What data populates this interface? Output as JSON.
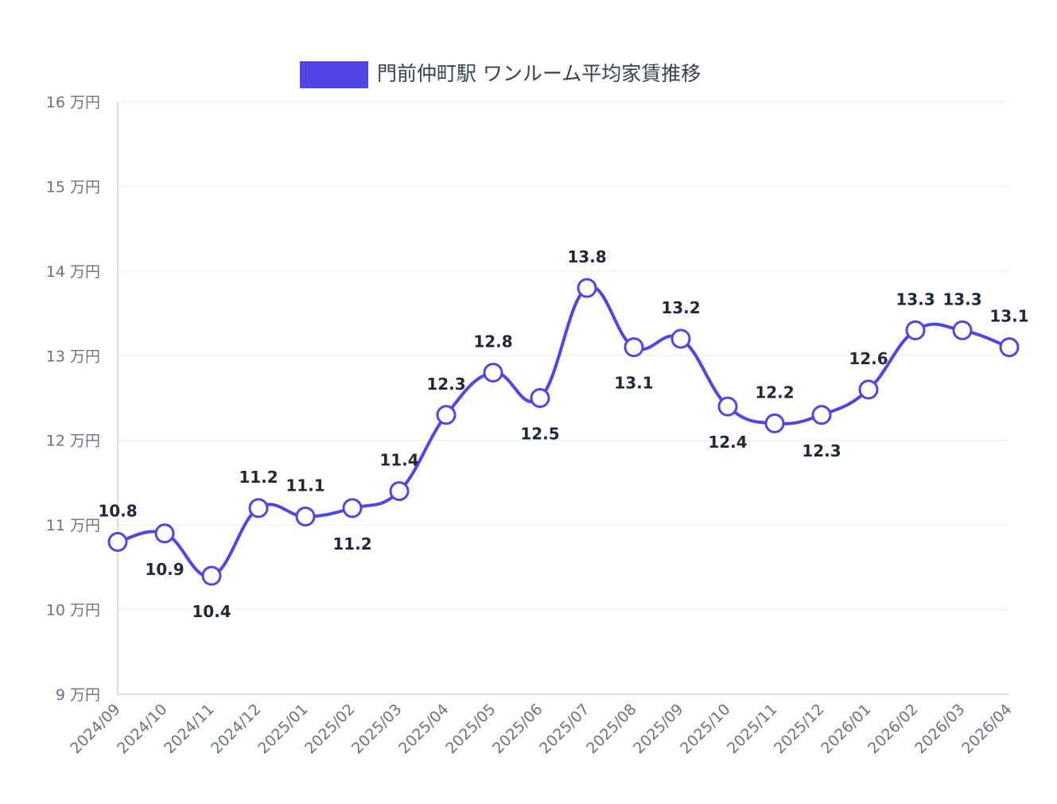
{
  "chart_data": {
    "type": "line",
    "title": "",
    "legend": {
      "position": "top",
      "label": "門前仲町駅 ワンルーム平均家賃推移",
      "color": "#4f46e5"
    },
    "xlabel": "",
    "ylabel": "",
    "y_unit": "万円",
    "ylim": [
      9,
      16
    ],
    "yticks": [
      9,
      10,
      11,
      12,
      13,
      14,
      15,
      16
    ],
    "grid": true,
    "categories": [
      "2024/09",
      "2024/10",
      "2024/11",
      "2024/12",
      "2025/01",
      "2025/02",
      "2025/03",
      "2025/04",
      "2025/05",
      "2025/06",
      "2025/07",
      "2025/08",
      "2025/09",
      "2025/10",
      "2025/11",
      "2025/12",
      "2026/01",
      "2026/02",
      "2026/03",
      "2026/04"
    ],
    "series": [
      {
        "name": "門前仲町駅 ワンルーム平均家賃推移",
        "color": "#4f46e5",
        "values": [
          10.8,
          10.9,
          10.4,
          11.2,
          11.1,
          11.2,
          11.4,
          12.3,
          12.8,
          12.5,
          13.8,
          13.1,
          13.2,
          12.4,
          12.2,
          12.3,
          12.6,
          13.3,
          13.3,
          13.1
        ],
        "label_positions": [
          "above",
          "below",
          "below",
          "above",
          "above",
          "below",
          "above",
          "above",
          "above",
          "below",
          "above",
          "below",
          "above",
          "below",
          "above",
          "below",
          "above",
          "above",
          "above",
          "above"
        ]
      }
    ]
  }
}
